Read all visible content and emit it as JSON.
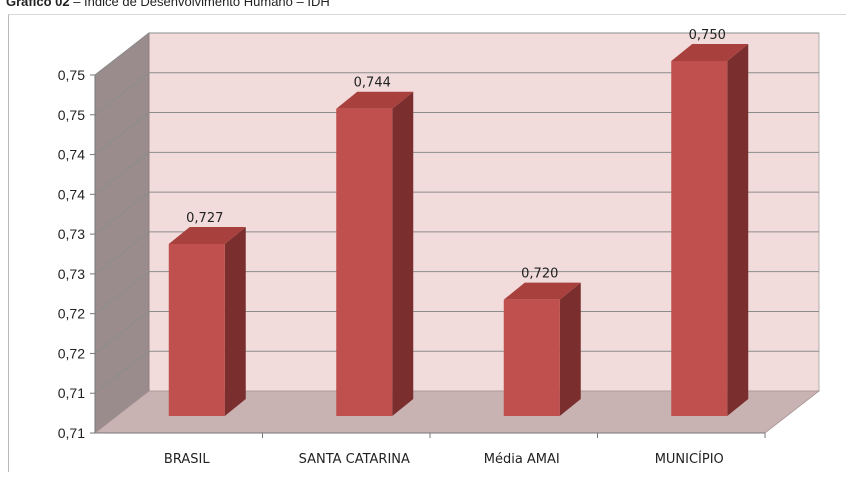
{
  "figure_title": {
    "prefix": "Gráfico 02",
    "text": " – Índice de Desenvolvimento Humano – IDH"
  },
  "colors": {
    "bar_front": "#c0504d",
    "bar_side": "#7a2f2e",
    "bar_top": "#a8403d",
    "back_wall": "#f2dcdb",
    "left_wall": "#9a8c8c",
    "floor": "#c9b2b2",
    "grid": "#8c8c8c"
  },
  "chart_data": {
    "type": "bar",
    "style": "3d-column",
    "title": "",
    "xlabel": "",
    "ylabel": "",
    "categories": [
      "BRASIL",
      "SANTA CATARINA",
      "Média AMAI",
      "MUNICÍPIO"
    ],
    "values": [
      0.727,
      0.744,
      0.72,
      0.75
    ],
    "data_labels": [
      "0,727",
      "0,744",
      "0,720",
      "0,750"
    ],
    "ylim": [
      0.705,
      0.75
    ],
    "yticks": [
      0.705,
      0.71,
      0.715,
      0.72,
      0.725,
      0.73,
      0.735,
      0.74,
      0.745,
      0.75
    ],
    "ytick_labels": [
      "0,71",
      "0,71",
      "0,72",
      "0,72",
      "0,73",
      "0,73",
      "0,74",
      "0,74",
      "0,75",
      "0,75"
    ],
    "grid": true,
    "legend": "none"
  }
}
